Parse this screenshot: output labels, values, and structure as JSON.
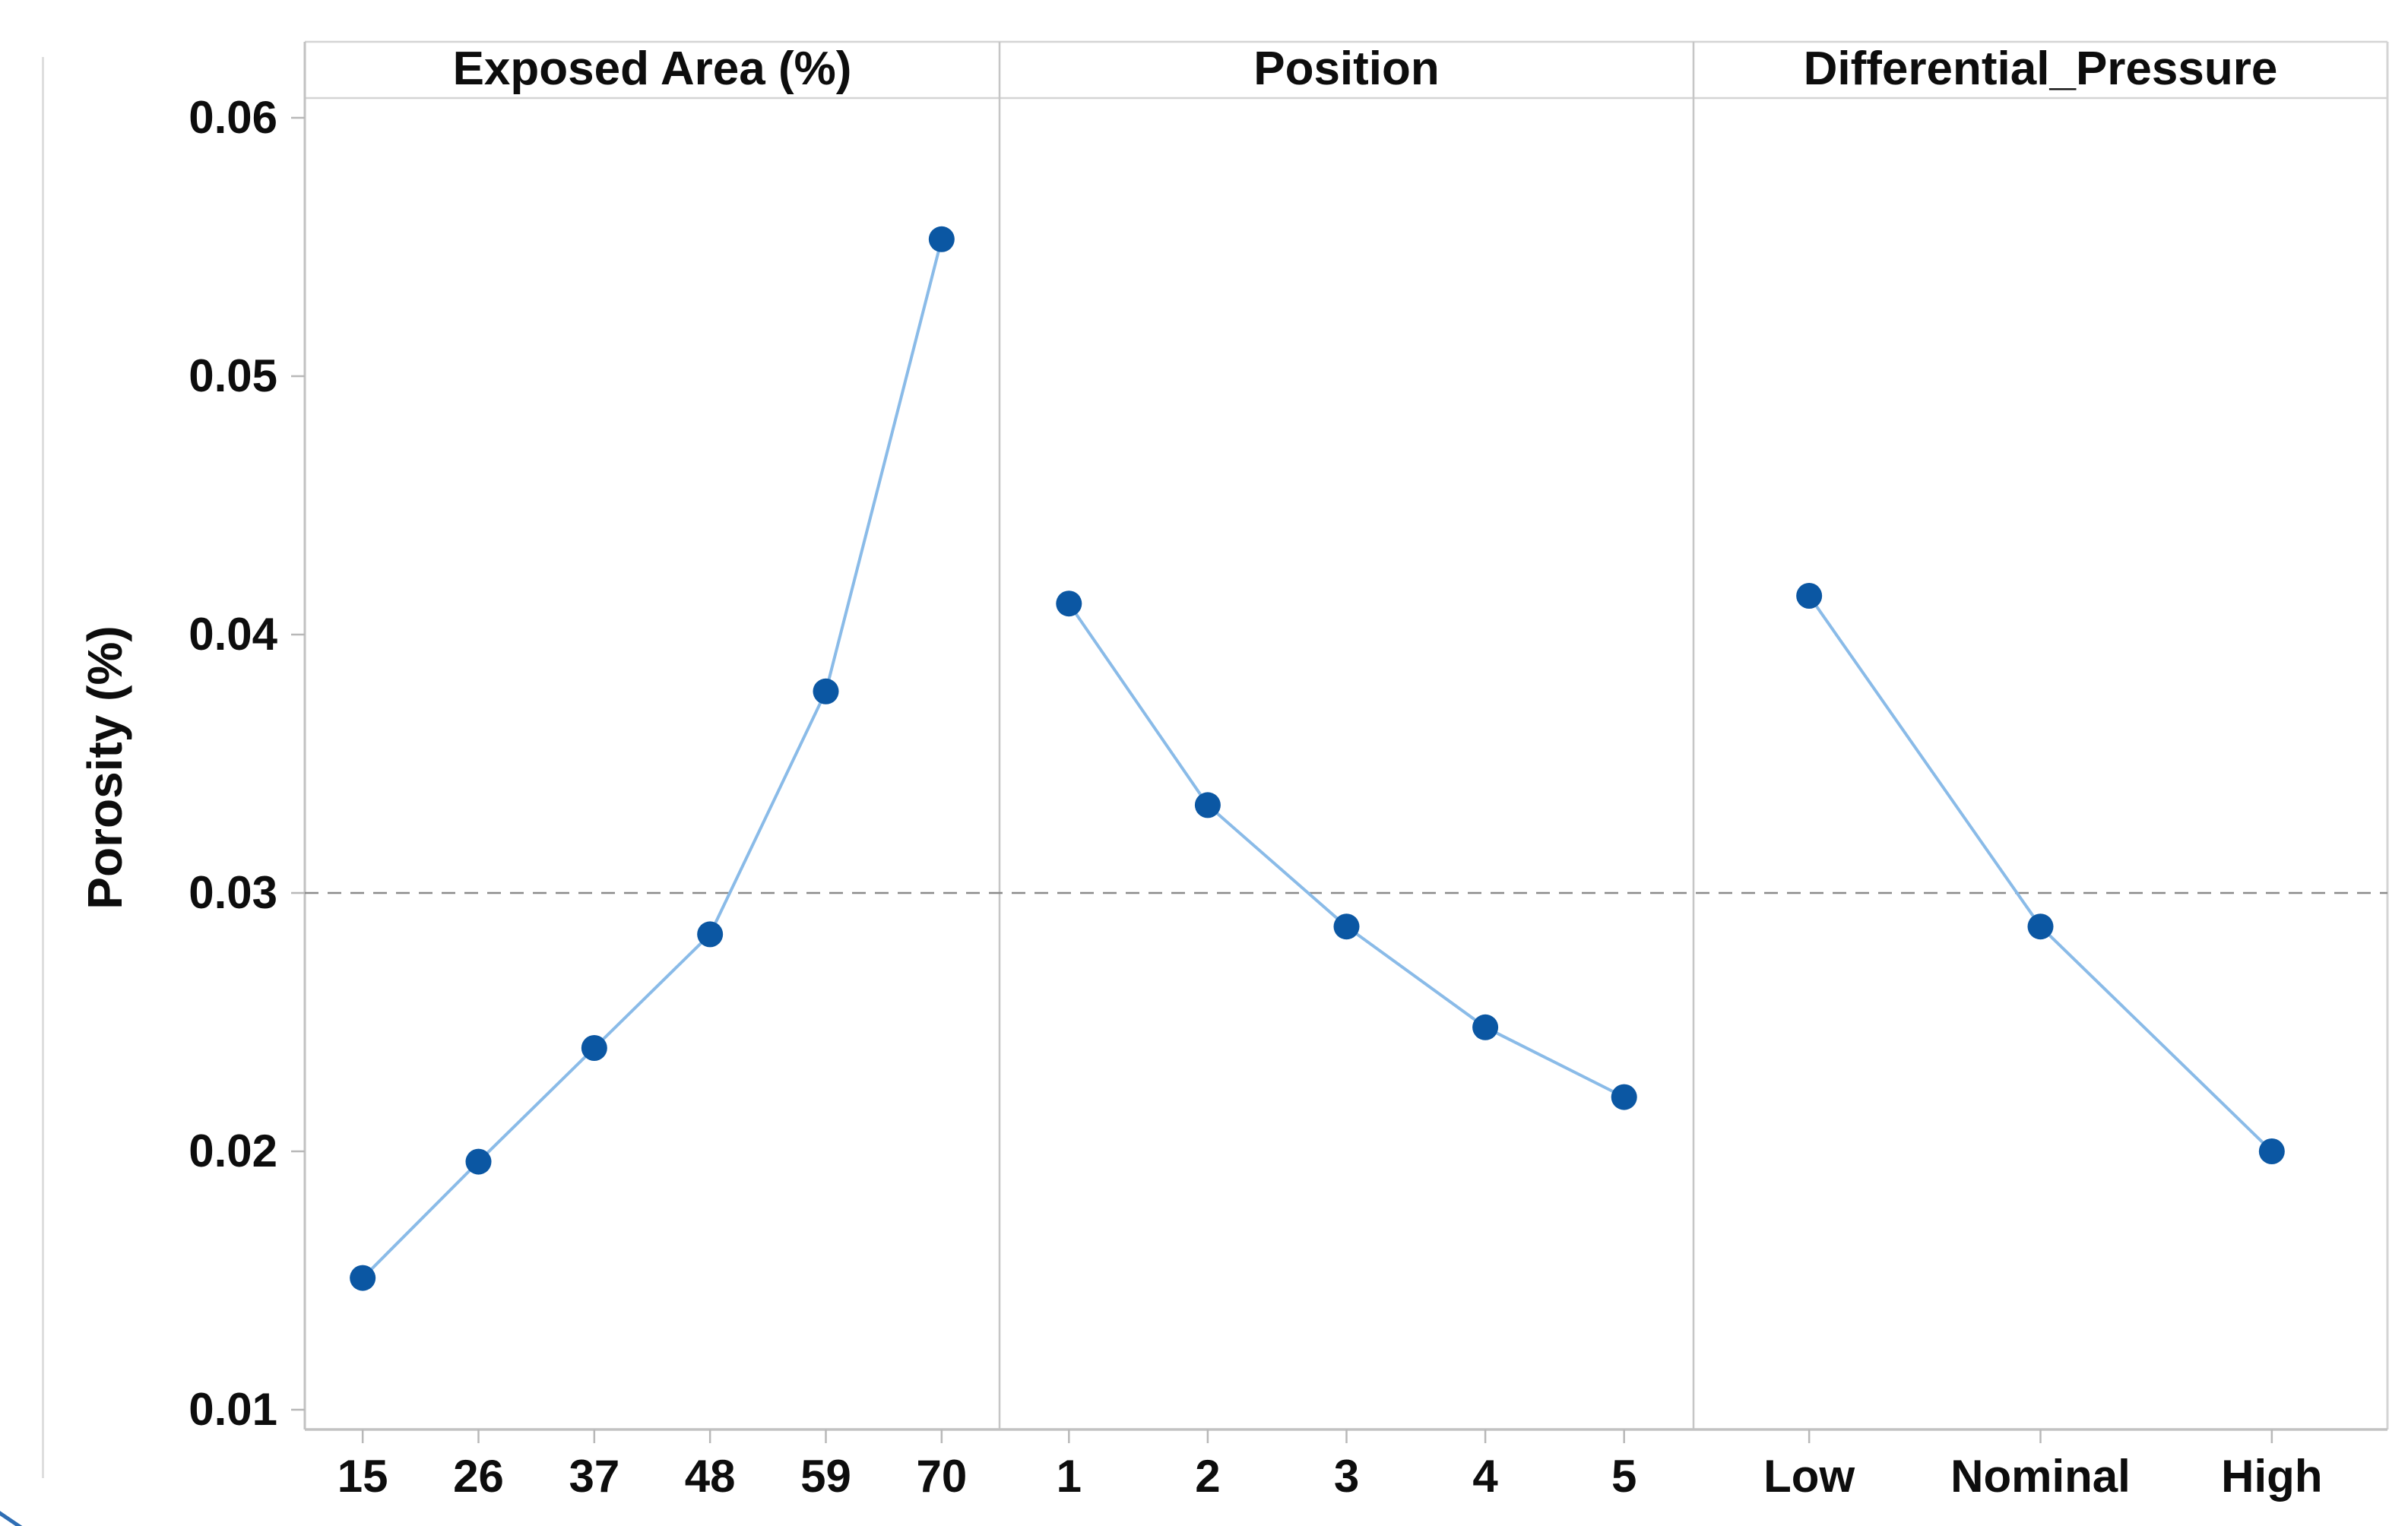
{
  "figure": {
    "y_axis_title": "Porosity (%)",
    "y_tick_labels": [
      "0.06",
      "0.05",
      "0.04",
      "0.03",
      "0.02",
      "0.01"
    ],
    "reference_value": 0.03,
    "colors": {
      "marker": "#0b57a3",
      "series_line": "#8abbe8",
      "axis_line": "#c2c2c2",
      "panel_border": "#d4d4d4",
      "divider": "#c6c6c6",
      "tick": "#b8b8b8",
      "dashed_reference": "#8a8a8a",
      "text": "#0d0d0d"
    }
  },
  "chart_data": [
    {
      "type": "line",
      "title": "Exposed Area (%)",
      "categories": [
        "15",
        "26",
        "37",
        "48",
        "59",
        "70"
      ],
      "values": [
        0.0151,
        0.0196,
        0.024,
        0.0284,
        0.0378,
        0.0553
      ],
      "xlabel": "",
      "ylabel": "Porosity (%)",
      "ylim": [
        0.0092,
        0.0608
      ],
      "yticks": [
        0.06,
        0.05,
        0.04,
        0.03,
        0.02,
        0.01
      ],
      "reference_line": 0.03,
      "grid": "off",
      "legend_position": "none"
    },
    {
      "type": "line",
      "title": "Position",
      "categories": [
        "1",
        "2",
        "3",
        "4",
        "5"
      ],
      "values": [
        0.0412,
        0.0334,
        0.0287,
        0.0248,
        0.0221
      ],
      "xlabel": "",
      "ylabel": "Porosity (%)",
      "ylim": [
        0.0092,
        0.0608
      ],
      "yticks": [
        0.06,
        0.05,
        0.04,
        0.03,
        0.02,
        0.01
      ],
      "reference_line": 0.03,
      "grid": "off",
      "legend_position": "none"
    },
    {
      "type": "line",
      "title": "Differential_Pressure",
      "categories": [
        "Low",
        "Nominal",
        "High"
      ],
      "values": [
        0.0415,
        0.0287,
        0.02
      ],
      "xlabel": "",
      "ylabel": "Porosity (%)",
      "ylim": [
        0.0092,
        0.0608
      ],
      "yticks": [
        0.06,
        0.05,
        0.04,
        0.03,
        0.02,
        0.01
      ],
      "reference_line": 0.03,
      "grid": "off",
      "legend_position": "none"
    }
  ]
}
